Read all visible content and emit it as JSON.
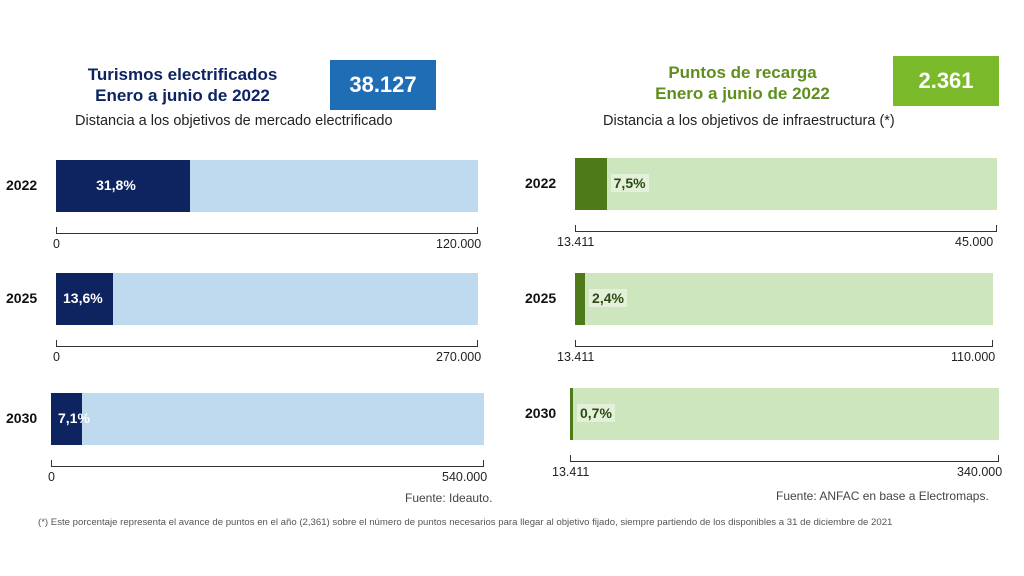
{
  "left": {
    "title_line1": "Turismos electrificados",
    "title_line2": "Enero a junio de 2022",
    "kpi_value": "38.127",
    "subtitle": "Distancia a los objetivos de mercado electrificado",
    "source": "Fuente: Ideauto.",
    "colors": {
      "title": "#0d2461",
      "kpi_bg": "#1e6db5",
      "fill": "#0d2461",
      "track": "#bfd9ef",
      "pct_text": "#ffffff"
    }
  },
  "right": {
    "title_line1": "Puntos de recarga",
    "title_line2": "Enero a junio de 2022",
    "kpi_value": "2.361",
    "subtitle": "Distancia a los objetivos de infraestructura (*)",
    "source": "Fuente: ANFAC en base a Electromaps.",
    "colors": {
      "title": "#5f8f1e",
      "kpi_bg": "#7ab92a",
      "fill": "#4f7a1a",
      "track": "#cde6bd",
      "pct_text": "#2d4a10"
    }
  },
  "footnote": "(*) Este porcentaje representa el avance de puntos en el año (2,361) sobre el número de puntos necesarios para llegar al objetivo fijado, siempre partiendo de los disponibles a 31 de diciembre de 2021",
  "chart_data": [
    {
      "type": "bar",
      "orientation": "horizontal",
      "title": "Turismos electrificados",
      "categories": [
        "2022",
        "2025",
        "2030"
      ],
      "series": [
        {
          "values": [
            31.8,
            13.6,
            7.1
          ]
        }
      ],
      "value_labels": [
        "31,8%",
        "13,6%",
        "7,1%"
      ],
      "axis_min_labels": [
        "0",
        "0",
        "0"
      ],
      "axis_max_labels": [
        "120.000",
        "270.000",
        "540.000"
      ],
      "grid": false
    },
    {
      "type": "bar",
      "orientation": "horizontal",
      "title": "Puntos de recarga",
      "categories": [
        "2022",
        "2025",
        "2030"
      ],
      "series": [
        {
          "values": [
            7.5,
            2.4,
            0.7
          ]
        }
      ],
      "value_labels": [
        "7,5%",
        "2,4%",
        "0,7%"
      ],
      "axis_min_labels": [
        "13.411",
        "13.411",
        "13.411"
      ],
      "axis_max_labels": [
        "45.000",
        "110.000",
        "340.000"
      ],
      "grid": false
    }
  ]
}
